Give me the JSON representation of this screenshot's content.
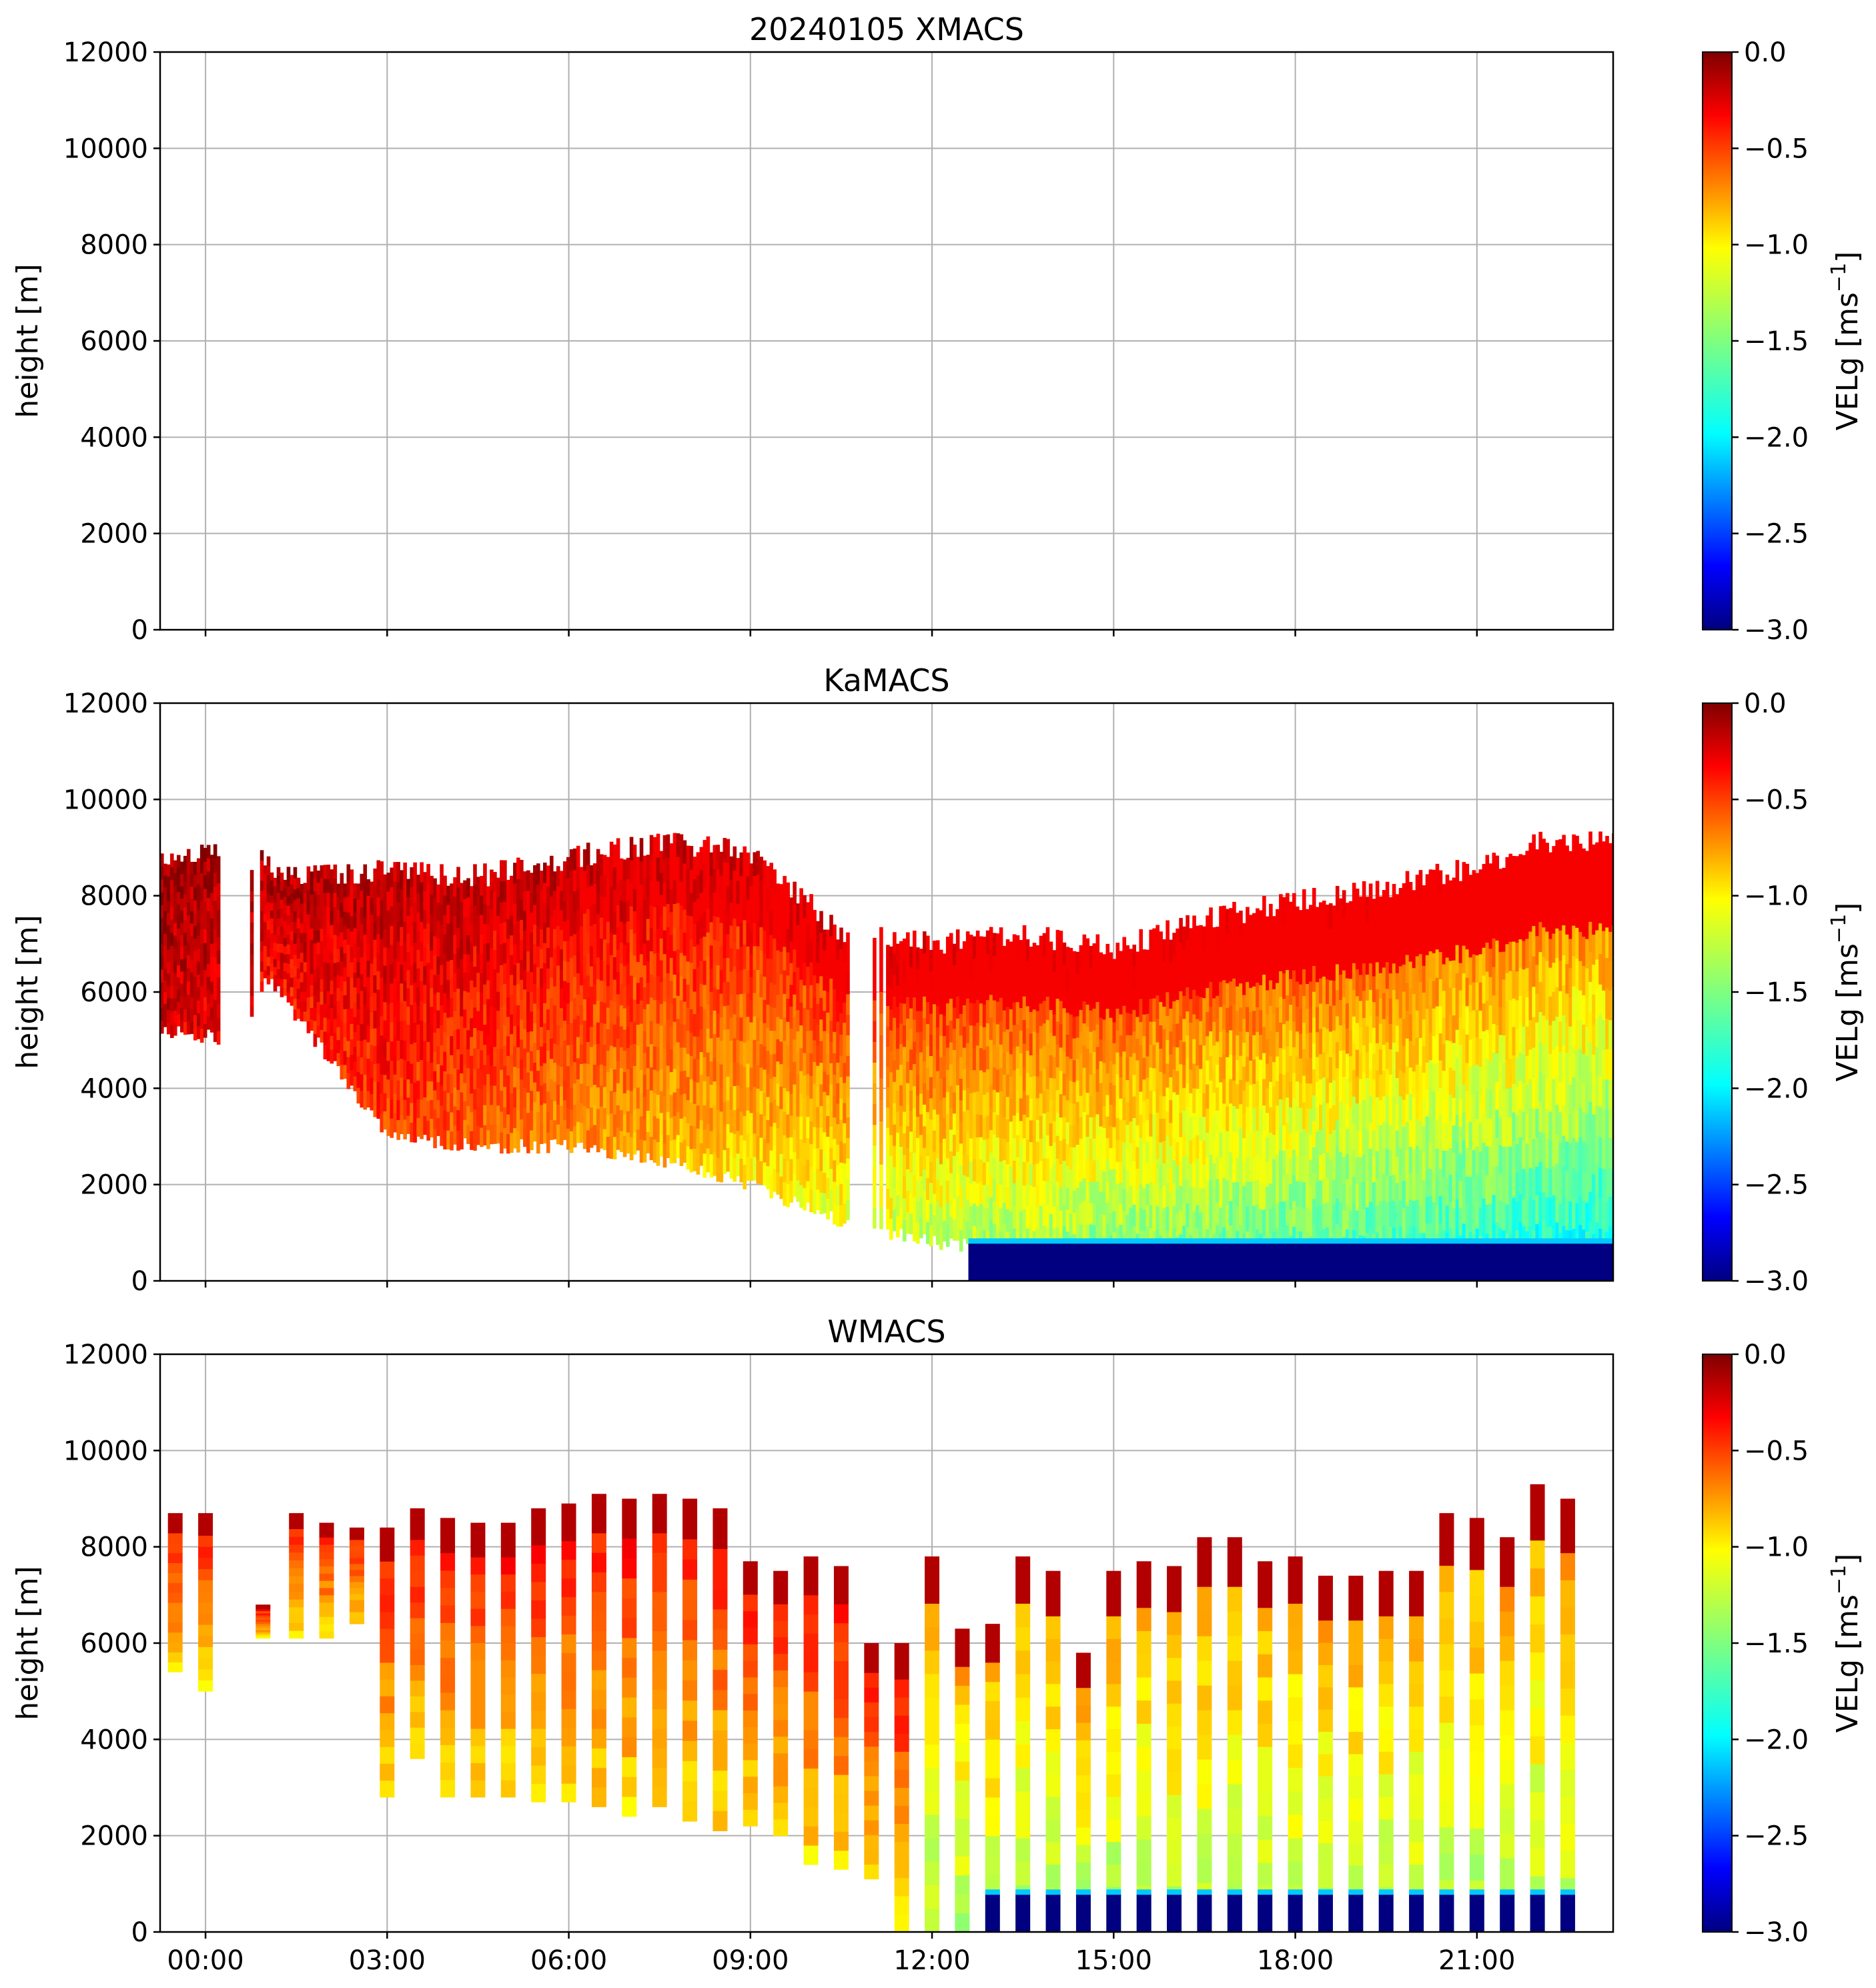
{
  "chart_data": [
    {
      "type": "heatmap",
      "title": "20240105 XMACS",
      "xlabel": "",
      "ylabel": "height [m]",
      "ylim": [
        0,
        12000
      ],
      "yticks": [
        "0",
        "2000",
        "4000",
        "6000",
        "8000",
        "10000",
        "12000"
      ],
      "xlim_hours": [
        -0.75,
        23.25
      ],
      "xticks": [],
      "grid": true,
      "colorbar": {
        "label": "VELg [ms",
        "label_exp": "−1",
        "label_close": "]",
        "min": -3.0,
        "max": 0.0,
        "ticks": [
          "0.0",
          "−0.5",
          "−1.0",
          "−1.5",
          "−2.0",
          "−2.5",
          "−3.0"
        ],
        "colormap": "jet"
      },
      "has_data": false
    },
    {
      "type": "heatmap",
      "title": "KaMACS",
      "xlabel": "",
      "ylabel": "height [m]",
      "ylim": [
        0,
        12000
      ],
      "yticks": [
        "0",
        "2000",
        "4000",
        "6000",
        "8000",
        "10000",
        "12000"
      ],
      "xlim_hours": [
        -0.75,
        23.25
      ],
      "xticks": [],
      "grid": true,
      "colorbar": {
        "label": "VELg [ms",
        "label_exp": "−1",
        "label_close": "]",
        "min": -3.0,
        "max": 0.0,
        "ticks": [
          "0.0",
          "−0.5",
          "−1.0",
          "−1.5",
          "−2.0",
          "−2.5",
          "−3.0"
        ],
        "colormap": "jet"
      },
      "has_data": true,
      "cloud_top_m": [
        [
          -0.75,
          8800
        ],
        [
          0.3,
          9000
        ],
        [
          1.5,
          8400
        ],
        [
          3.0,
          8500
        ],
        [
          4.5,
          8400
        ],
        [
          6.0,
          8800
        ],
        [
          7.5,
          9100
        ],
        [
          9.0,
          8900
        ],
        [
          10.5,
          7200
        ],
        [
          12.0,
          7000
        ],
        [
          13.5,
          7200
        ],
        [
          15.0,
          6900
        ],
        [
          16.5,
          7500
        ],
        [
          18.0,
          7900
        ],
        [
          19.5,
          8200
        ],
        [
          21.0,
          8600
        ],
        [
          22.0,
          9100
        ],
        [
          23.25,
          9200
        ]
      ],
      "cloud_base_m": [
        [
          -0.75,
          5200
        ],
        [
          0.5,
          5000
        ],
        [
          1.0,
          6300
        ],
        [
          3.0,
          3000
        ],
        [
          4.5,
          2800
        ],
        [
          6.0,
          2800
        ],
        [
          7.5,
          2500
        ],
        [
          9.0,
          2000
        ],
        [
          10.5,
          1200
        ],
        [
          12.0,
          800
        ],
        [
          13.5,
          600
        ],
        [
          15.0,
          600
        ],
        [
          18.0,
          500
        ],
        [
          21.0,
          500
        ],
        [
          23.25,
          500
        ]
      ],
      "surface_layer": {
        "start_hour": 12.6,
        "end_hour": 23.25,
        "top_m": 800,
        "value": -3.0
      },
      "velocity_trend": [
        [
          -0.75,
          -0.2
        ],
        [
          6.0,
          -0.6
        ],
        [
          12.0,
          -1.0
        ],
        [
          18.0,
          -1.2
        ],
        [
          23.25,
          -1.4
        ]
      ]
    },
    {
      "type": "heatmap",
      "title": "WMACS",
      "xlabel": "",
      "ylabel": "height [m]",
      "ylim": [
        0,
        12000
      ],
      "yticks": [
        "0",
        "2000",
        "4000",
        "6000",
        "8000",
        "10000",
        "12000"
      ],
      "xlim_hours": [
        -0.75,
        23.25
      ],
      "xticks": [
        "00:00",
        "03:00",
        "06:00",
        "09:00",
        "12:00",
        "15:00",
        "18:00",
        "21:00"
      ],
      "grid": true,
      "colorbar": {
        "label": "VELg [ms",
        "label_exp": "−1",
        "label_close": "]",
        "min": -3.0,
        "max": 0.0,
        "ticks": [
          "0.0",
          "−0.5",
          "−1.0",
          "−1.5",
          "−2.0",
          "−2.5",
          "−3.0"
        ],
        "colormap": "jet"
      },
      "has_data": true,
      "strip_times_hours": [
        -0.5,
        0.0,
        0.95,
        1.5,
        2.0,
        2.5,
        3.0,
        3.5,
        4.0,
        4.5,
        5.0,
        5.5,
        6.0,
        6.5,
        7.0,
        7.5,
        8.0,
        8.5,
        9.0,
        9.5,
        10.0,
        10.5,
        11.0,
        11.5,
        12.0,
        12.5,
        13.0,
        13.5,
        14.0,
        14.5,
        15.0,
        15.5,
        16.0,
        16.5,
        17.0,
        17.5,
        18.0,
        18.5,
        19.0,
        19.5,
        20.0,
        20.5,
        21.0,
        21.5,
        22.0,
        22.5
      ],
      "strip_tops_m": [
        8700,
        8700,
        6800,
        8700,
        8500,
        8400,
        8400,
        8800,
        8600,
        8500,
        8500,
        8800,
        8900,
        9100,
        9000,
        9100,
        9000,
        8800,
        7700,
        7500,
        7800,
        7600,
        6000,
        6000,
        7800,
        6300,
        6400,
        7800,
        7500,
        5800,
        7500,
        7700,
        7600,
        8200,
        8200,
        7700,
        7800,
        7400,
        7400,
        7500,
        7500,
        8700,
        8600,
        8200,
        9300,
        9000
      ],
      "strip_bases_m": [
        5400,
        5000,
        6100,
        6100,
        6100,
        6400,
        2800,
        3600,
        2800,
        2800,
        2800,
        2700,
        2700,
        2600,
        2400,
        2600,
        2300,
        2100,
        2200,
        2000,
        1400,
        1300,
        1100,
        0,
        0,
        0,
        0,
        0,
        0,
        0,
        0,
        0,
        0,
        0,
        0,
        0,
        0,
        0,
        0,
        0,
        0,
        0,
        0,
        0,
        0,
        0
      ],
      "surface_layer": {
        "start_hour": 12.6,
        "end_hour": 23.25,
        "top_m": 800,
        "value": -3.0
      }
    }
  ]
}
